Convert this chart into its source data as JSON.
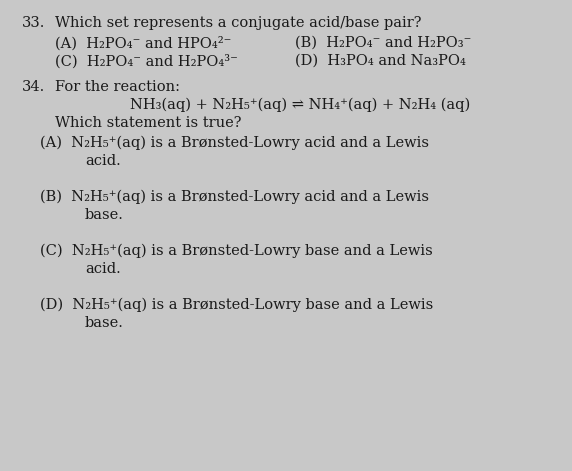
{
  "bg_color": "#c8c8c8",
  "text_color": "#1a1a1a",
  "fs": 10.5,
  "q33_num": "33.",
  "q33_q": "Which set represents a conjugate acid/base pair?",
  "q33_A": "(A)  H₂PO₄⁻ and HPO₄²⁻",
  "q33_B": "(B)  H₂PO₄⁻ and H₂PO₃⁻",
  "q33_C": "(C)  H₂PO₄⁻ and H₂PO₄³⁻",
  "q33_D": "(D)  H₃PO₄ and Na₃PO₄",
  "q34_num": "34.",
  "q34_q": "For the reaction:",
  "q34_rxn": "NH₃(aq) + N₂H₅⁺(aq) ⇌ NH₄⁺(aq) + N₂H₄ (aq)",
  "q34_which": "Which statement is true?",
  "q34_A1": "(A)  N₂H₅⁺(aq) is a Brønsted-Lowry acid and a Lewis",
  "q34_A2": "acid.",
  "q34_B1": "(B)  N₂H₅⁺(aq) is a Brønsted-Lowry acid and a Lewis",
  "q34_B2": "base.",
  "q34_C1": "(C)  N₂H₅⁺(aq) is a Brønsted-Lowry base and a Lewis",
  "q34_C2": "acid.",
  "q34_D1": "(D)  N₂H₅⁺(aq) is a Brønsted-Lowry base and a Lewis",
  "q34_D2": "base."
}
